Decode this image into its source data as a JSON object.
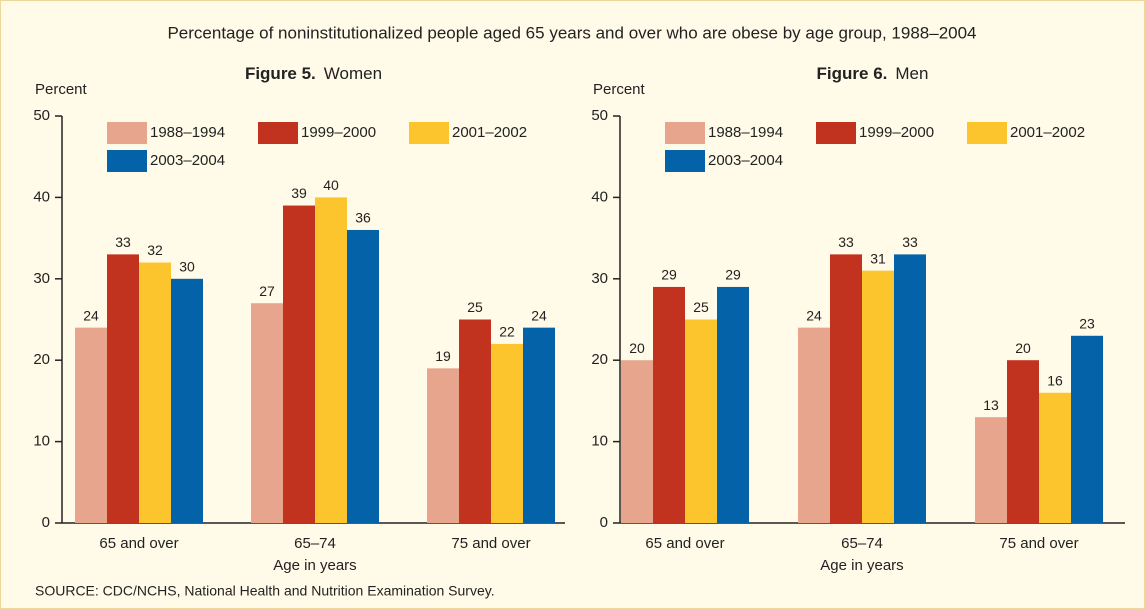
{
  "title": "Percentage of noninstitutionalized people aged 65 years and over who are obese by age group, 1988–2004",
  "source": "SOURCE:  CDC/NCHS, National Health and Nutrition Examination Survey.",
  "chart_data": [
    {
      "type": "bar",
      "figure": "Figure 5.",
      "title": "Women",
      "y_label": "Percent",
      "x_label": "Age in years",
      "categories": [
        "65 and over",
        "65–74",
        "75 and over"
      ],
      "series": [
        {
          "name": "1988–1994",
          "color": "#e6a58c",
          "values": [
            24,
            27,
            19
          ]
        },
        {
          "name": "1999–2000",
          "color": "#c1321f",
          "values": [
            33,
            39,
            25
          ]
        },
        {
          "name": "2001–2002",
          "color": "#fdc52d",
          "values": [
            32,
            40,
            22
          ]
        },
        {
          "name": "2003–2004",
          "color": "#0462a9",
          "values": [
            30,
            36,
            24
          ]
        }
      ],
      "ylim": [
        0,
        50
      ],
      "yticks": [
        0,
        10,
        20,
        30,
        40,
        50
      ]
    },
    {
      "type": "bar",
      "figure": "Figure 6.",
      "title": "Men",
      "y_label": "Percent",
      "x_label": "Age in years",
      "categories": [
        "65 and over",
        "65–74",
        "75 and over"
      ],
      "series": [
        {
          "name": "1988–1994",
          "color": "#e6a58c",
          "values": [
            20,
            24,
            13
          ]
        },
        {
          "name": "1999–2000",
          "color": "#c1321f",
          "values": [
            29,
            33,
            20
          ]
        },
        {
          "name": "2001–2002",
          "color": "#fdc52d",
          "values": [
            25,
            31,
            16
          ]
        },
        {
          "name": "2003–2004",
          "color": "#0462a9",
          "values": [
            29,
            33,
            23
          ]
        }
      ],
      "ylim": [
        0,
        50
      ],
      "yticks": [
        0,
        10,
        20,
        30,
        40,
        50
      ]
    }
  ]
}
